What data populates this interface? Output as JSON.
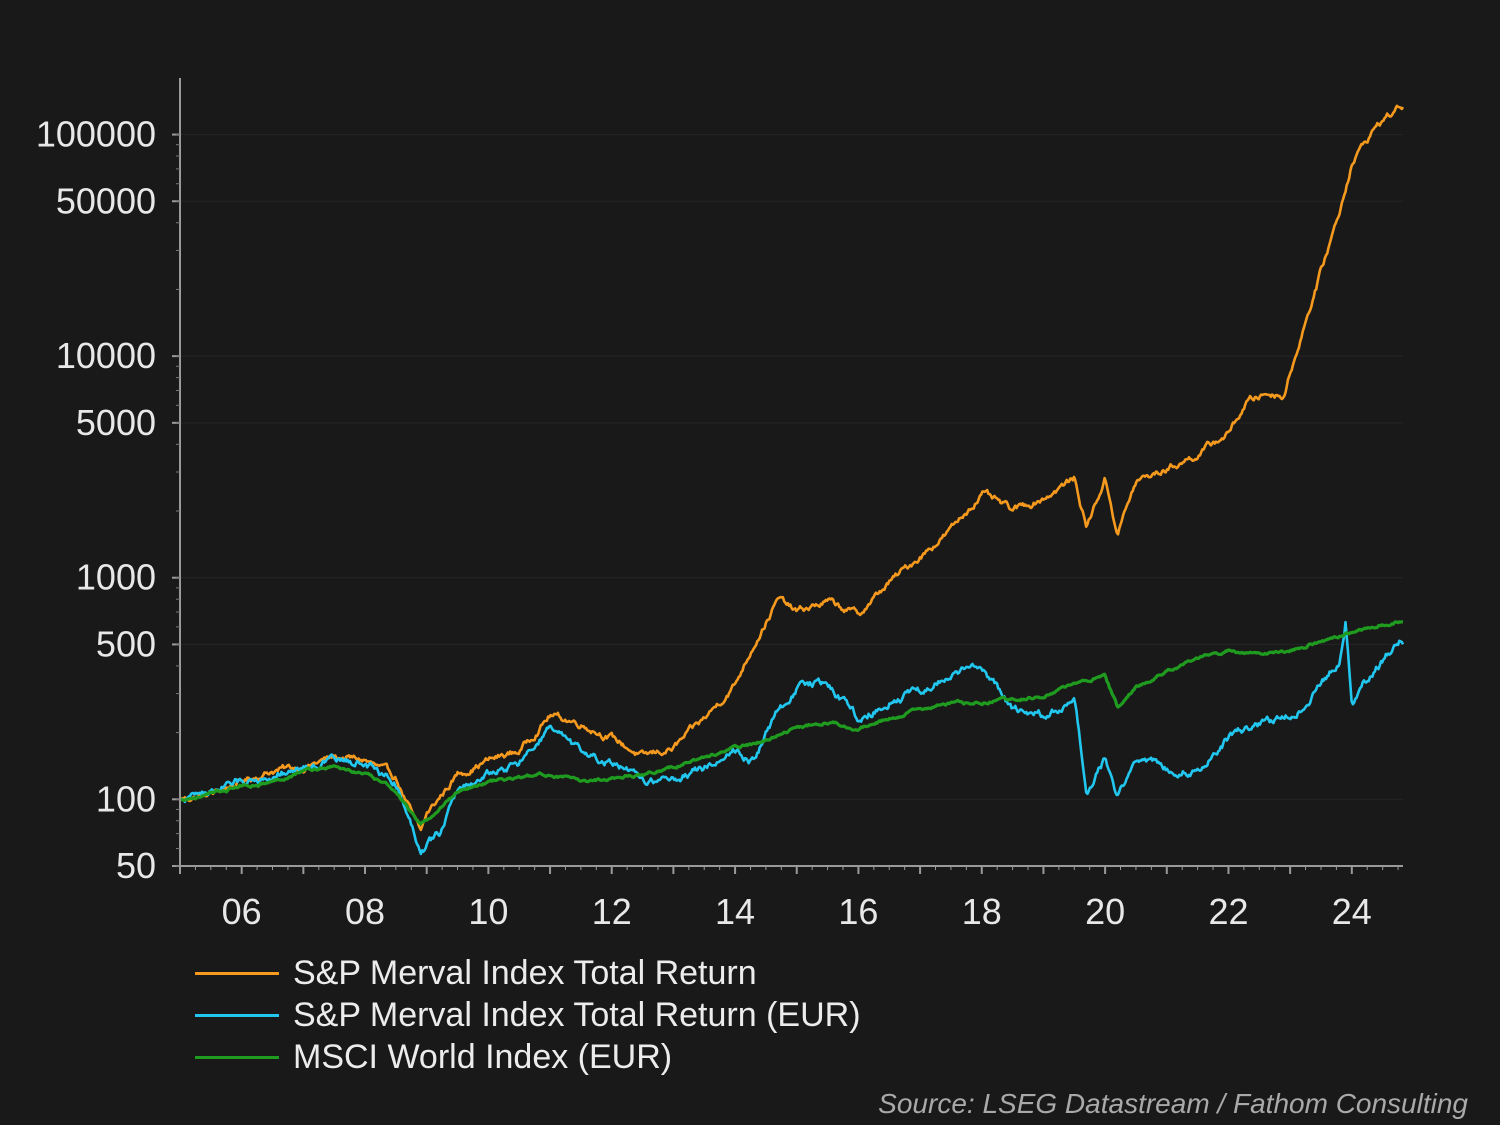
{
  "chart_data": {
    "type": "line",
    "title": "",
    "xlabel": "",
    "ylabel": "",
    "y_scale": "log",
    "ylim": [
      50,
      180000
    ],
    "xlim": [
      "2005-01",
      "2024-11"
    ],
    "y_ticks": [
      50,
      100,
      500,
      1000,
      5000,
      10000,
      50000,
      100000
    ],
    "y_tick_labels": [
      "50",
      "100",
      "500",
      "1000",
      "5000",
      "10000",
      "50000",
      "100000"
    ],
    "x_ticks": [
      2006,
      2008,
      2010,
      2012,
      2014,
      2016,
      2018,
      2020,
      2022,
      2024
    ],
    "x_tick_labels": [
      "06",
      "08",
      "10",
      "12",
      "14",
      "16",
      "18",
      "20",
      "22",
      "24"
    ],
    "grid": "horizontal, faint",
    "legend_position": "bottom-left",
    "series": [
      {
        "name": "S&P Merval Index Total Return",
        "color": "#f59a1e",
        "x": [
          2005.0,
          2005.5,
          2006.0,
          2006.5,
          2007.0,
          2007.5,
          2008.0,
          2008.5,
          2008.9,
          2009.0,
          2009.5,
          2010.0,
          2010.5,
          2011.0,
          2011.5,
          2012.0,
          2012.5,
          2013.0,
          2013.5,
          2014.0,
          2014.3,
          2014.7,
          2015.0,
          2015.5,
          2016.0,
          2016.5,
          2017.0,
          2017.5,
          2018.0,
          2018.5,
          2019.0,
          2019.5,
          2019.7,
          2020.0,
          2020.2,
          2020.5,
          2021.0,
          2021.5,
          2022.0,
          2022.3,
          2022.6,
          2022.9,
          2023.2,
          2023.5,
          2023.8,
          2024.0,
          2024.4,
          2024.8
        ],
        "values": [
          100,
          105,
          120,
          135,
          140,
          155,
          150,
          125,
          70,
          85,
          130,
          150,
          165,
          240,
          220,
          190,
          155,
          170,
          230,
          330,
          500,
          800,
          700,
          780,
          680,
          950,
          1250,
          1650,
          2400,
          2000,
          2300,
          2800,
          1700,
          2800,
          1600,
          2700,
          3100,
          3600,
          4500,
          6200,
          6800,
          6700,
          13000,
          24000,
          45000,
          75000,
          110000,
          135000
        ]
      },
      {
        "name": "S&P Merval Index Total Return (EUR)",
        "color": "#22c7f0",
        "x": [
          2005.0,
          2005.5,
          2006.0,
          2006.5,
          2007.0,
          2007.5,
          2008.0,
          2008.5,
          2008.9,
          2009.2,
          2009.5,
          2010.0,
          2010.5,
          2011.0,
          2011.5,
          2012.0,
          2012.5,
          2013.0,
          2013.5,
          2014.0,
          2014.3,
          2014.7,
          2015.0,
          2015.5,
          2016.0,
          2016.5,
          2017.0,
          2017.5,
          2018.0,
          2018.5,
          2019.0,
          2019.5,
          2019.7,
          2020.0,
          2020.2,
          2020.5,
          2021.0,
          2021.5,
          2022.0,
          2022.5,
          2022.9,
          2023.2,
          2023.5,
          2023.8,
          2023.9,
          2024.0,
          2024.4,
          2024.8
        ],
        "values": [
          100,
          110,
          120,
          130,
          140,
          150,
          145,
          120,
          60,
          70,
          110,
          130,
          145,
          210,
          160,
          145,
          120,
          125,
          140,
          170,
          150,
          250,
          320,
          340,
          230,
          280,
          310,
          360,
          400,
          250,
          240,
          270,
          105,
          150,
          100,
          155,
          140,
          135,
          190,
          220,
          230,
          260,
          340,
          420,
          650,
          280,
          400,
          520
        ]
      },
      {
        "name": "MSCI World Index (EUR)",
        "color": "#1f9b1f",
        "x": [
          2005.0,
          2005.5,
          2006.0,
          2006.5,
          2007.0,
          2007.5,
          2008.0,
          2008.5,
          2008.9,
          2009.2,
          2009.5,
          2010.0,
          2010.5,
          2011.0,
          2011.5,
          2012.0,
          2012.5,
          2013.0,
          2013.5,
          2014.0,
          2014.5,
          2015.0,
          2015.5,
          2016.0,
          2016.5,
          2017.0,
          2017.5,
          2018.0,
          2018.5,
          2019.0,
          2019.5,
          2020.0,
          2020.2,
          2020.5,
          2021.0,
          2021.5,
          2022.0,
          2022.5,
          2023.0,
          2023.5,
          2024.0,
          2024.5,
          2024.8
        ],
        "values": [
          100,
          105,
          115,
          120,
          135,
          140,
          130,
          110,
          75,
          90,
          110,
          120,
          125,
          130,
          120,
          125,
          130,
          140,
          155,
          170,
          185,
          210,
          225,
          210,
          230,
          255,
          270,
          275,
          285,
          290,
          330,
          360,
          260,
          320,
          380,
          430,
          470,
          450,
          470,
          520,
          560,
          620,
          640
        ]
      }
    ],
    "source": "Source: LSEG Datastream / Fathom Consulting"
  }
}
